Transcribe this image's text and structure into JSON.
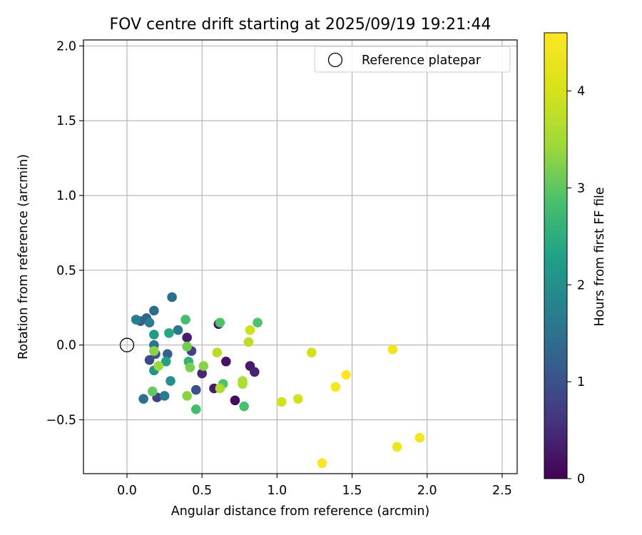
{
  "chart_data": {
    "type": "scatter",
    "title": "FOV centre drift starting at 2025/09/19 19:21:44",
    "xlabel": "Angular distance from reference (arcmin)",
    "ylabel": "Rotation from reference (arcmin)",
    "xlim": [
      -0.29,
      2.6
    ],
    "ylim": [
      -0.86,
      2.04
    ],
    "xticks": [
      0.0,
      0.5,
      1.0,
      1.5,
      2.0,
      2.5
    ],
    "xtick_labels": [
      "0.0",
      "0.5",
      "1.0",
      "1.5",
      "2.0",
      "2.5"
    ],
    "yticks": [
      -0.5,
      0.0,
      0.5,
      1.0,
      1.5,
      2.0
    ],
    "ytick_labels": [
      "−0.5",
      "0.0",
      "0.5",
      "1.0",
      "1.5",
      "2.0"
    ],
    "grid": true,
    "legend": {
      "position": "top-right",
      "entries": [
        {
          "label": "Reference platepar",
          "marker": "open-circle"
        }
      ]
    },
    "reference_point": {
      "x": 0.0,
      "y": 0.0
    },
    "colorbar": {
      "label": "Hours from first FF file",
      "min": 0,
      "max": 4.6,
      "ticks": [
        0,
        1,
        2,
        3,
        4
      ],
      "tick_labels": [
        "0",
        "1",
        "2",
        "3",
        "4"
      ],
      "colormap": "viridis"
    },
    "points": [
      {
        "x": 0.61,
        "y": 0.14,
        "c": 0.15
      },
      {
        "x": 0.4,
        "y": 0.05,
        "c": 0.35
      },
      {
        "x": 0.66,
        "y": -0.11,
        "c": 0.2
      },
      {
        "x": 0.5,
        "y": -0.19,
        "c": 0.45
      },
      {
        "x": 0.58,
        "y": -0.29,
        "c": 0.3
      },
      {
        "x": 0.72,
        "y": -0.37,
        "c": 0.1
      },
      {
        "x": 0.82,
        "y": -0.14,
        "c": 0.3
      },
      {
        "x": 0.85,
        "y": -0.18,
        "c": 0.4
      },
      {
        "x": 0.43,
        "y": -0.04,
        "c": 0.8
      },
      {
        "x": 0.46,
        "y": -0.3,
        "c": 1.0
      },
      {
        "x": 0.2,
        "y": -0.35,
        "c": 0.8
      },
      {
        "x": 0.15,
        "y": -0.1,
        "c": 0.9
      },
      {
        "x": 0.19,
        "y": -0.06,
        "c": 1.05
      },
      {
        "x": 0.27,
        "y": -0.06,
        "c": 1.2
      },
      {
        "x": 0.09,
        "y": 0.16,
        "c": 1.25
      },
      {
        "x": 0.13,
        "y": 0.18,
        "c": 1.3
      },
      {
        "x": 0.18,
        "y": 0.23,
        "c": 1.4
      },
      {
        "x": 0.3,
        "y": 0.32,
        "c": 1.45
      },
      {
        "x": 0.11,
        "y": -0.36,
        "c": 1.5
      },
      {
        "x": 0.25,
        "y": -0.34,
        "c": 1.65
      },
      {
        "x": 0.34,
        "y": 0.1,
        "c": 1.6
      },
      {
        "x": 0.06,
        "y": 0.17,
        "c": 1.7
      },
      {
        "x": 0.15,
        "y": 0.15,
        "c": 1.7
      },
      {
        "x": 0.18,
        "y": 0.0,
        "c": 1.55
      },
      {
        "x": 0.29,
        "y": -0.24,
        "c": 2.0
      },
      {
        "x": 0.18,
        "y": -0.17,
        "c": 2.1
      },
      {
        "x": 0.26,
        "y": -0.11,
        "c": 2.3
      },
      {
        "x": 0.18,
        "y": 0.07,
        "c": 2.2
      },
      {
        "x": 0.28,
        "y": 0.08,
        "c": 2.4
      },
      {
        "x": 0.39,
        "y": 0.17,
        "c": 2.8
      },
      {
        "x": 0.41,
        "y": -0.11,
        "c": 2.6
      },
      {
        "x": 0.46,
        "y": -0.43,
        "c": 2.8
      },
      {
        "x": 0.62,
        "y": 0.15,
        "c": 2.9
      },
      {
        "x": 0.64,
        "y": -0.26,
        "c": 2.9
      },
      {
        "x": 0.78,
        "y": -0.41,
        "c": 2.85
      },
      {
        "x": 0.87,
        "y": 0.15,
        "c": 2.9
      },
      {
        "x": 0.17,
        "y": -0.31,
        "c": 3.05
      },
      {
        "x": 0.4,
        "y": -0.01,
        "c": 3.15
      },
      {
        "x": 0.42,
        "y": -0.15,
        "c": 3.2
      },
      {
        "x": 0.51,
        "y": -0.14,
        "c": 3.3
      },
      {
        "x": 0.18,
        "y": -0.04,
        "c": 3.3
      },
      {
        "x": 0.21,
        "y": -0.14,
        "c": 3.4
      },
      {
        "x": 0.4,
        "y": -0.34,
        "c": 3.3
      },
      {
        "x": 0.62,
        "y": -0.29,
        "c": 3.55
      },
      {
        "x": 0.77,
        "y": -0.24,
        "c": 3.6
      },
      {
        "x": 0.77,
        "y": -0.26,
        "c": 3.6
      },
      {
        "x": 0.6,
        "y": -0.05,
        "c": 3.7
      },
      {
        "x": 0.81,
        "y": 0.02,
        "c": 3.75
      },
      {
        "x": 0.82,
        "y": 0.1,
        "c": 3.9
      },
      {
        "x": 1.23,
        "y": -0.05,
        "c": 3.95
      },
      {
        "x": 1.03,
        "y": -0.38,
        "c": 3.95
      },
      {
        "x": 1.14,
        "y": -0.36,
        "c": 3.95
      },
      {
        "x": 1.77,
        "y": -0.03,
        "c": 4.4
      },
      {
        "x": 1.46,
        "y": -0.2,
        "c": 4.6
      },
      {
        "x": 1.39,
        "y": -0.28,
        "c": 4.5
      },
      {
        "x": 1.3,
        "y": -0.79,
        "c": 4.55
      },
      {
        "x": 1.8,
        "y": -0.68,
        "c": 4.35
      },
      {
        "x": 1.95,
        "y": -0.62,
        "c": 4.4
      }
    ]
  }
}
